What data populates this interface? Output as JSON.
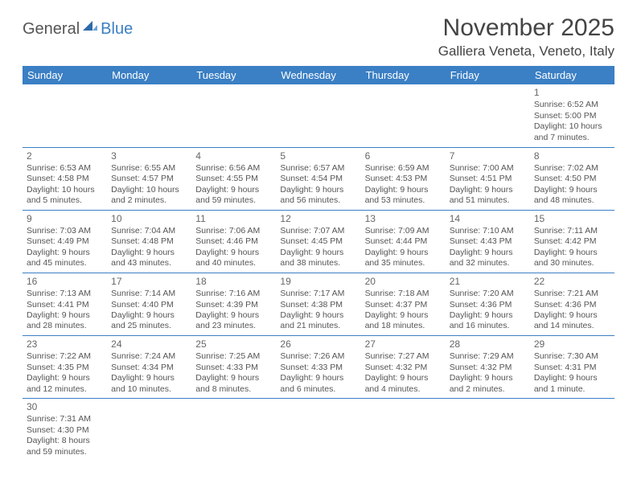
{
  "branding": {
    "logo_general": "General",
    "logo_blue": "Blue",
    "logo_color_general": "#555555",
    "logo_color_blue": "#3b7fc4"
  },
  "header": {
    "month_title": "November 2025",
    "location": "Galliera Veneta, Veneto, Italy"
  },
  "styling": {
    "header_bg": "#3b7fc4",
    "header_text": "#ffffff",
    "divider_color": "#3b7fc4",
    "body_text_color": "#555555",
    "font_family": "Arial",
    "title_fontsize": 30,
    "location_fontsize": 17,
    "dayheader_fontsize": 13,
    "cell_fontsize": 10.5
  },
  "calendar": {
    "day_headers": [
      "Sunday",
      "Monday",
      "Tuesday",
      "Wednesday",
      "Thursday",
      "Friday",
      "Saturday"
    ],
    "weeks": [
      [
        null,
        null,
        null,
        null,
        null,
        null,
        {
          "d": "1",
          "sr": "Sunrise: 6:52 AM",
          "ss": "Sunset: 5:00 PM",
          "dl1": "Daylight: 10 hours",
          "dl2": "and 7 minutes."
        }
      ],
      [
        {
          "d": "2",
          "sr": "Sunrise: 6:53 AM",
          "ss": "Sunset: 4:58 PM",
          "dl1": "Daylight: 10 hours",
          "dl2": "and 5 minutes."
        },
        {
          "d": "3",
          "sr": "Sunrise: 6:55 AM",
          "ss": "Sunset: 4:57 PM",
          "dl1": "Daylight: 10 hours",
          "dl2": "and 2 minutes."
        },
        {
          "d": "4",
          "sr": "Sunrise: 6:56 AM",
          "ss": "Sunset: 4:55 PM",
          "dl1": "Daylight: 9 hours",
          "dl2": "and 59 minutes."
        },
        {
          "d": "5",
          "sr": "Sunrise: 6:57 AM",
          "ss": "Sunset: 4:54 PM",
          "dl1": "Daylight: 9 hours",
          "dl2": "and 56 minutes."
        },
        {
          "d": "6",
          "sr": "Sunrise: 6:59 AM",
          "ss": "Sunset: 4:53 PM",
          "dl1": "Daylight: 9 hours",
          "dl2": "and 53 minutes."
        },
        {
          "d": "7",
          "sr": "Sunrise: 7:00 AM",
          "ss": "Sunset: 4:51 PM",
          "dl1": "Daylight: 9 hours",
          "dl2": "and 51 minutes."
        },
        {
          "d": "8",
          "sr": "Sunrise: 7:02 AM",
          "ss": "Sunset: 4:50 PM",
          "dl1": "Daylight: 9 hours",
          "dl2": "and 48 minutes."
        }
      ],
      [
        {
          "d": "9",
          "sr": "Sunrise: 7:03 AM",
          "ss": "Sunset: 4:49 PM",
          "dl1": "Daylight: 9 hours",
          "dl2": "and 45 minutes."
        },
        {
          "d": "10",
          "sr": "Sunrise: 7:04 AM",
          "ss": "Sunset: 4:48 PM",
          "dl1": "Daylight: 9 hours",
          "dl2": "and 43 minutes."
        },
        {
          "d": "11",
          "sr": "Sunrise: 7:06 AM",
          "ss": "Sunset: 4:46 PM",
          "dl1": "Daylight: 9 hours",
          "dl2": "and 40 minutes."
        },
        {
          "d": "12",
          "sr": "Sunrise: 7:07 AM",
          "ss": "Sunset: 4:45 PM",
          "dl1": "Daylight: 9 hours",
          "dl2": "and 38 minutes."
        },
        {
          "d": "13",
          "sr": "Sunrise: 7:09 AM",
          "ss": "Sunset: 4:44 PM",
          "dl1": "Daylight: 9 hours",
          "dl2": "and 35 minutes."
        },
        {
          "d": "14",
          "sr": "Sunrise: 7:10 AM",
          "ss": "Sunset: 4:43 PM",
          "dl1": "Daylight: 9 hours",
          "dl2": "and 32 minutes."
        },
        {
          "d": "15",
          "sr": "Sunrise: 7:11 AM",
          "ss": "Sunset: 4:42 PM",
          "dl1": "Daylight: 9 hours",
          "dl2": "and 30 minutes."
        }
      ],
      [
        {
          "d": "16",
          "sr": "Sunrise: 7:13 AM",
          "ss": "Sunset: 4:41 PM",
          "dl1": "Daylight: 9 hours",
          "dl2": "and 28 minutes."
        },
        {
          "d": "17",
          "sr": "Sunrise: 7:14 AM",
          "ss": "Sunset: 4:40 PM",
          "dl1": "Daylight: 9 hours",
          "dl2": "and 25 minutes."
        },
        {
          "d": "18",
          "sr": "Sunrise: 7:16 AM",
          "ss": "Sunset: 4:39 PM",
          "dl1": "Daylight: 9 hours",
          "dl2": "and 23 minutes."
        },
        {
          "d": "19",
          "sr": "Sunrise: 7:17 AM",
          "ss": "Sunset: 4:38 PM",
          "dl1": "Daylight: 9 hours",
          "dl2": "and 21 minutes."
        },
        {
          "d": "20",
          "sr": "Sunrise: 7:18 AM",
          "ss": "Sunset: 4:37 PM",
          "dl1": "Daylight: 9 hours",
          "dl2": "and 18 minutes."
        },
        {
          "d": "21",
          "sr": "Sunrise: 7:20 AM",
          "ss": "Sunset: 4:36 PM",
          "dl1": "Daylight: 9 hours",
          "dl2": "and 16 minutes."
        },
        {
          "d": "22",
          "sr": "Sunrise: 7:21 AM",
          "ss": "Sunset: 4:36 PM",
          "dl1": "Daylight: 9 hours",
          "dl2": "and 14 minutes."
        }
      ],
      [
        {
          "d": "23",
          "sr": "Sunrise: 7:22 AM",
          "ss": "Sunset: 4:35 PM",
          "dl1": "Daylight: 9 hours",
          "dl2": "and 12 minutes."
        },
        {
          "d": "24",
          "sr": "Sunrise: 7:24 AM",
          "ss": "Sunset: 4:34 PM",
          "dl1": "Daylight: 9 hours",
          "dl2": "and 10 minutes."
        },
        {
          "d": "25",
          "sr": "Sunrise: 7:25 AM",
          "ss": "Sunset: 4:33 PM",
          "dl1": "Daylight: 9 hours",
          "dl2": "and 8 minutes."
        },
        {
          "d": "26",
          "sr": "Sunrise: 7:26 AM",
          "ss": "Sunset: 4:33 PM",
          "dl1": "Daylight: 9 hours",
          "dl2": "and 6 minutes."
        },
        {
          "d": "27",
          "sr": "Sunrise: 7:27 AM",
          "ss": "Sunset: 4:32 PM",
          "dl1": "Daylight: 9 hours",
          "dl2": "and 4 minutes."
        },
        {
          "d": "28",
          "sr": "Sunrise: 7:29 AM",
          "ss": "Sunset: 4:32 PM",
          "dl1": "Daylight: 9 hours",
          "dl2": "and 2 minutes."
        },
        {
          "d": "29",
          "sr": "Sunrise: 7:30 AM",
          "ss": "Sunset: 4:31 PM",
          "dl1": "Daylight: 9 hours",
          "dl2": "and 1 minute."
        }
      ],
      [
        {
          "d": "30",
          "sr": "Sunrise: 7:31 AM",
          "ss": "Sunset: 4:30 PM",
          "dl1": "Daylight: 8 hours",
          "dl2": "and 59 minutes."
        },
        null,
        null,
        null,
        null,
        null,
        null
      ]
    ]
  }
}
